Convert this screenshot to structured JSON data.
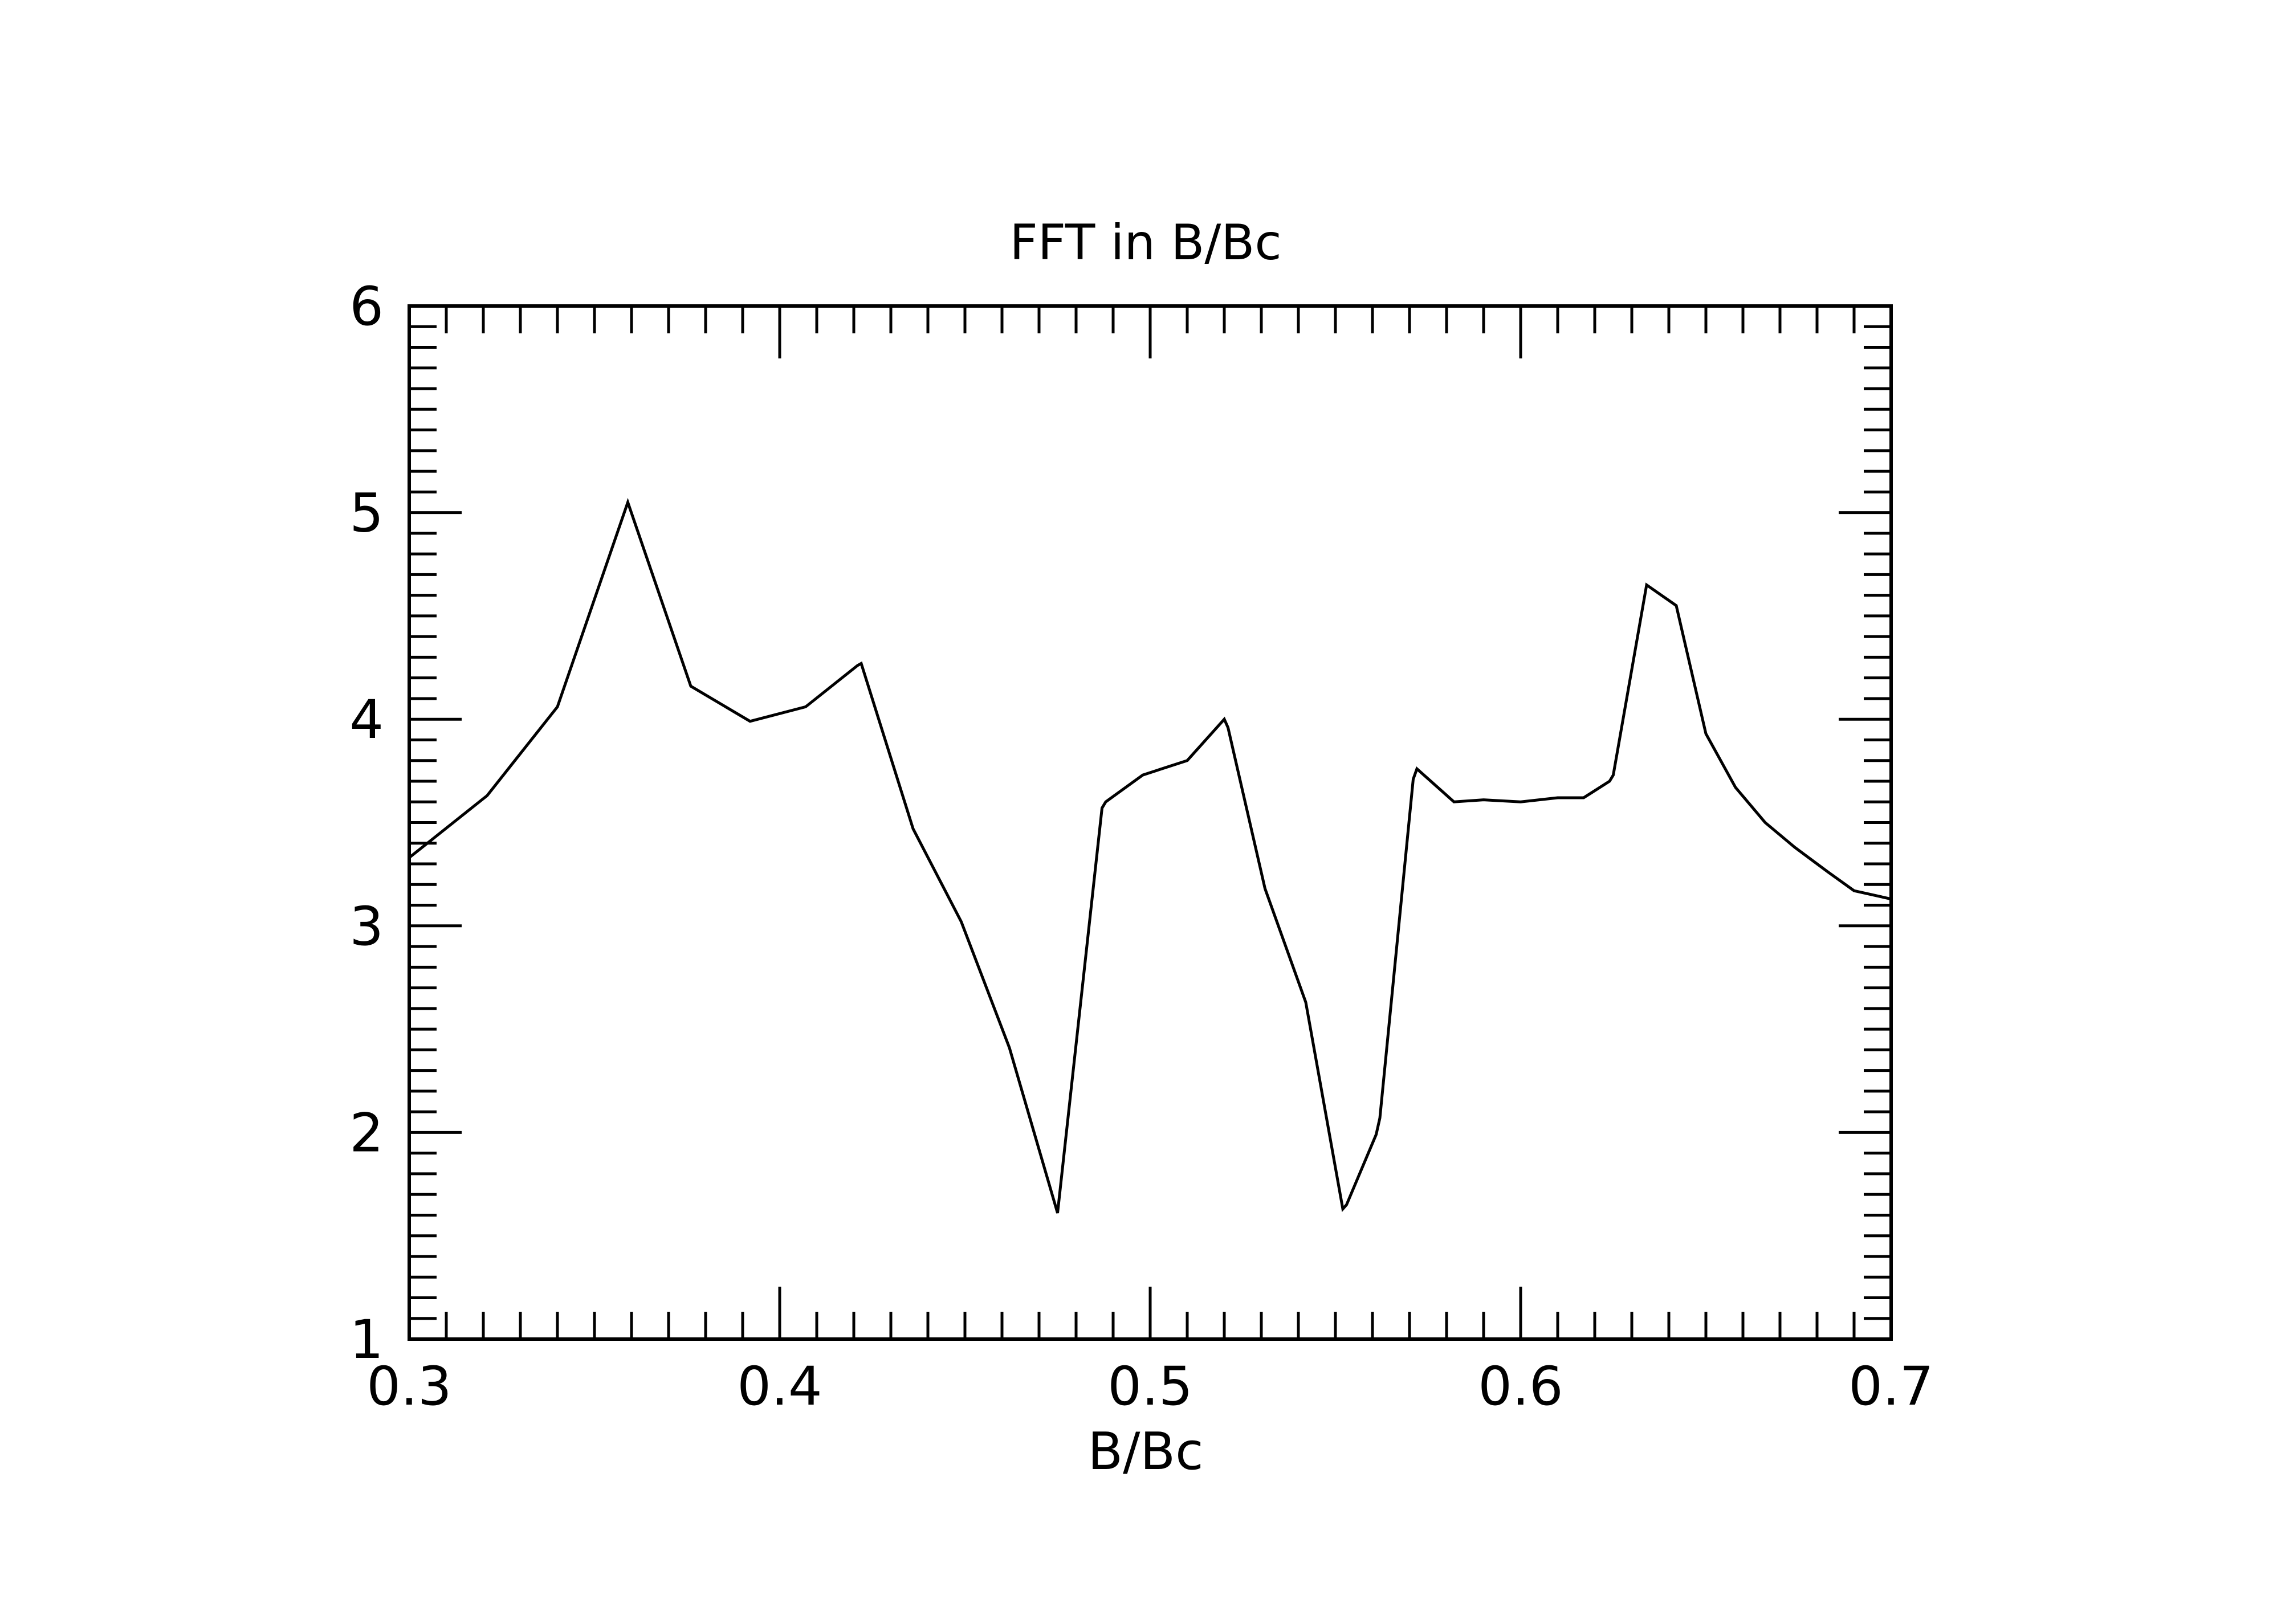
{
  "chart_data": {
    "type": "line",
    "title": "FFT in B/Bc",
    "xlabel": "B/Bc",
    "ylabel": "",
    "xlim": [
      0.3,
      0.7
    ],
    "ylim": [
      1,
      6
    ],
    "xticks": [
      0.3,
      0.4,
      0.5,
      0.6,
      0.7
    ],
    "xtick_labels": [
      "0.3",
      "0.4",
      "0.5",
      "0.6",
      "0.7"
    ],
    "yticks": [
      1,
      2,
      3,
      4,
      5,
      6
    ],
    "ytick_labels": [
      "1",
      "2",
      "3",
      "4",
      "5",
      "6"
    ],
    "x_minor_step": 0.01,
    "y_minor_step": 0.1,
    "grid": false,
    "legend": "none",
    "line_color": "#000000",
    "series": [
      {
        "x": [
          0.3,
          0.321,
          0.34,
          0.359,
          0.376,
          0.392,
          0.407,
          0.421,
          0.422,
          0.436,
          0.449,
          0.462,
          0.475,
          0.487,
          0.488,
          0.498,
          0.51,
          0.52,
          0.521,
          0.531,
          0.542,
          0.552,
          0.553,
          0.561,
          0.562,
          0.571,
          0.572,
          0.582,
          0.59,
          0.6,
          0.61,
          0.617,
          0.624,
          0.625,
          0.634,
          0.642,
          0.65,
          0.658,
          0.666,
          0.674,
          0.683,
          0.69,
          0.7
        ],
        "y": [
          3.33,
          3.63,
          4.06,
          5.05,
          4.16,
          3.99,
          4.06,
          4.26,
          4.27,
          3.47,
          3.02,
          2.41,
          1.61,
          3.57,
          3.6,
          3.73,
          3.8,
          4.0,
          3.96,
          3.18,
          2.63,
          1.63,
          1.65,
          1.99,
          2.07,
          3.71,
          3.76,
          3.6,
          3.61,
          3.6,
          3.62,
          3.62,
          3.7,
          3.73,
          4.65,
          4.55,
          3.93,
          3.67,
          3.5,
          3.38,
          3.26,
          3.17,
          3.13
        ]
      }
    ]
  }
}
